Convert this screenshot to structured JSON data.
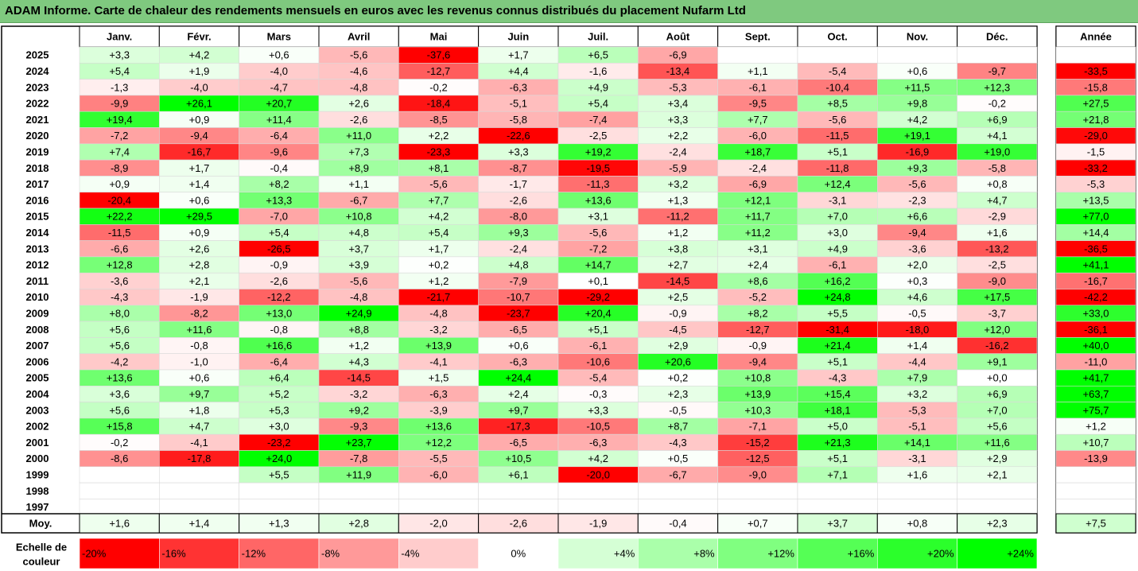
{
  "title": "ADAM Informe. Carte de chaleur des rendements mensuels en euros avec les revenus connus distribués du placement Nufarm Ltd",
  "chart_data": {
    "type": "heatmap",
    "months": [
      "Janv.",
      "Févr.",
      "Mars",
      "Avril",
      "Mai",
      "Juin",
      "Juil.",
      "Août",
      "Sept.",
      "Oct.",
      "Nov.",
      "Déc."
    ],
    "year_header": "Année",
    "rows": [
      {
        "year": "2025",
        "values": [
          3.3,
          4.2,
          0.6,
          -5.6,
          -37.6,
          1.7,
          6.5,
          -6.9,
          null,
          null,
          null,
          null
        ],
        "annual": null
      },
      {
        "year": "2024",
        "values": [
          5.4,
          1.9,
          -4.0,
          -4.6,
          -12.7,
          4.4,
          -1.6,
          -13.4,
          1.1,
          -5.4,
          0.6,
          -9.7
        ],
        "annual": -33.5
      },
      {
        "year": "2023",
        "values": [
          -1.3,
          -4.0,
          -4.7,
          -4.8,
          -0.2,
          -6.3,
          4.9,
          -5.3,
          -6.1,
          -10.4,
          11.5,
          12.3
        ],
        "annual": -15.8
      },
      {
        "year": "2022",
        "values": [
          -9.9,
          26.1,
          20.7,
          2.6,
          -18.4,
          -5.1,
          5.4,
          3.4,
          -9.5,
          8.5,
          9.8,
          -0.2
        ],
        "annual": 27.5
      },
      {
        "year": "2021",
        "values": [
          19.4,
          0.9,
          11.4,
          -2.6,
          -8.5,
          -5.8,
          -7.4,
          3.3,
          7.7,
          -5.6,
          4.2,
          6.9
        ],
        "annual": 21.8
      },
      {
        "year": "2020",
        "values": [
          -7.2,
          -9.4,
          -6.4,
          11.0,
          2.2,
          -22.6,
          -2.5,
          2.2,
          -6.0,
          -11.5,
          19.1,
          4.1
        ],
        "annual": -29.0
      },
      {
        "year": "2019",
        "values": [
          7.4,
          -16.7,
          -9.6,
          7.3,
          -23.3,
          3.3,
          19.2,
          -2.4,
          18.7,
          5.1,
          -16.9,
          19.0
        ],
        "annual": -1.5
      },
      {
        "year": "2018",
        "values": [
          -8.9,
          1.7,
          -0.4,
          8.9,
          8.1,
          -8.7,
          -19.5,
          -5.9,
          -2.4,
          -11.8,
          9.3,
          -5.8
        ],
        "annual": -33.2
      },
      {
        "year": "2017",
        "values": [
          0.9,
          1.4,
          8.2,
          1.1,
          -5.6,
          -1.7,
          -11.3,
          3.2,
          -6.9,
          12.4,
          -5.6,
          0.8
        ],
        "annual": -5.3
      },
      {
        "year": "2016",
        "values": [
          -20.4,
          0.6,
          13.3,
          -6.7,
          7.7,
          -2.6,
          13.6,
          1.3,
          12.1,
          -3.1,
          -2.3,
          4.7
        ],
        "annual": 13.5
      },
      {
        "year": "2015",
        "values": [
          22.2,
          29.5,
          -7.0,
          10.8,
          4.2,
          -8.0,
          3.1,
          -11.2,
          11.7,
          7.0,
          6.6,
          -2.9
        ],
        "annual": 77.0
      },
      {
        "year": "2014",
        "values": [
          -11.5,
          0.9,
          5.4,
          4.8,
          5.4,
          9.3,
          -5.6,
          1.2,
          11.2,
          3.0,
          -9.4,
          1.6
        ],
        "annual": 14.4
      },
      {
        "year": "2013",
        "values": [
          -6.6,
          2.6,
          -26.5,
          3.7,
          1.7,
          -2.4,
          -7.2,
          3.8,
          3.1,
          4.9,
          -3.6,
          -13.2
        ],
        "annual": -36.5
      },
      {
        "year": "2012",
        "values": [
          12.8,
          2.8,
          -0.9,
          3.9,
          0.2,
          4.8,
          14.7,
          2.7,
          2.4,
          -6.1,
          2.0,
          -2.5
        ],
        "annual": 41.1
      },
      {
        "year": "2011",
        "values": [
          -3.6,
          2.1,
          -2.6,
          -5.6,
          1.2,
          -7.9,
          0.1,
          -14.5,
          8.6,
          16.2,
          0.3,
          -9.0
        ],
        "annual": -16.7
      },
      {
        "year": "2010",
        "values": [
          -4.3,
          -1.9,
          -12.2,
          -4.8,
          -21.7,
          -10.7,
          -29.2,
          2.5,
          -5.2,
          24.8,
          4.6,
          17.5
        ],
        "annual": -42.2
      },
      {
        "year": "2009",
        "values": [
          8.0,
          -8.2,
          13.0,
          24.9,
          -4.8,
          -23.7,
          20.4,
          -0.9,
          8.2,
          5.5,
          -0.5,
          -3.7
        ],
        "annual": 33.0
      },
      {
        "year": "2008",
        "values": [
          5.6,
          11.6,
          -0.8,
          8.8,
          -3.2,
          -6.5,
          5.1,
          -4.5,
          -12.7,
          -31.4,
          -18.0,
          12.0
        ],
        "annual": -36.1
      },
      {
        "year": "2007",
        "values": [
          5.6,
          -0.8,
          16.6,
          1.2,
          13.9,
          0.6,
          -6.1,
          2.9,
          -0.9,
          21.4,
          1.4,
          -16.2
        ],
        "annual": 40.0
      },
      {
        "year": "2006",
        "values": [
          -4.2,
          -1.0,
          -6.4,
          4.3,
          -4.1,
          -6.3,
          -10.6,
          20.6,
          -9.4,
          5.1,
          -4.4,
          9.1
        ],
        "annual": -11.0
      },
      {
        "year": "2005",
        "values": [
          13.6,
          0.6,
          6.4,
          -14.5,
          1.5,
          24.4,
          -5.4,
          0.2,
          10.8,
          -4.3,
          7.9,
          0.0
        ],
        "annual": 41.7
      },
      {
        "year": "2004",
        "values": [
          3.6,
          9.7,
          5.2,
          -3.2,
          -6.3,
          2.4,
          -0.3,
          2.3,
          13.9,
          15.4,
          3.2,
          6.9
        ],
        "annual": 63.7
      },
      {
        "year": "2003",
        "values": [
          5.6,
          1.8,
          5.3,
          9.2,
          -3.9,
          9.7,
          3.3,
          -0.5,
          10.3,
          18.1,
          -5.3,
          7.0
        ],
        "annual": 75.7
      },
      {
        "year": "2002",
        "values": [
          15.8,
          4.7,
          3.0,
          -9.3,
          13.6,
          -17.3,
          -10.5,
          8.7,
          -7.1,
          5.0,
          -5.1,
          5.6
        ],
        "annual": 1.2
      },
      {
        "year": "2001",
        "values": [
          -0.2,
          -4.1,
          -23.2,
          23.7,
          12.2,
          -6.5,
          -6.3,
          -4.3,
          -15.2,
          21.3,
          14.1,
          11.6
        ],
        "annual": 10.7
      },
      {
        "year": "2000",
        "values": [
          -8.6,
          -17.8,
          24.0,
          -7.8,
          -5.5,
          10.5,
          4.2,
          0.5,
          -12.5,
          5.1,
          -3.1,
          2.9
        ],
        "annual": -13.9
      },
      {
        "year": "1999",
        "values": [
          null,
          null,
          5.5,
          11.9,
          -6.0,
          6.1,
          -20.0,
          -6.7,
          -9.0,
          7.1,
          1.6,
          2.1
        ],
        "annual": null
      },
      {
        "year": "1998",
        "values": [
          null,
          null,
          null,
          null,
          null,
          null,
          null,
          null,
          null,
          null,
          null,
          null
        ],
        "annual": null
      },
      {
        "year": "1997",
        "values": [
          null,
          null,
          null,
          null,
          null,
          null,
          null,
          null,
          null,
          null,
          null,
          null
        ],
        "annual": null
      }
    ],
    "average": {
      "label": "Moy.",
      "values": [
        1.6,
        1.4,
        1.3,
        2.8,
        -2.0,
        -2.6,
        -1.9,
        -0.4,
        0.7,
        3.7,
        0.8,
        2.3
      ],
      "annual": 7.5
    },
    "color_scale": {
      "label": "Echelle de couleur",
      "stops": [
        -20,
        -16,
        -12,
        -8,
        -4,
        0,
        4,
        8,
        12,
        16,
        20,
        24
      ],
      "stop_labels": [
        "-20%",
        "-16%",
        "-12%",
        "-8%",
        "-4%",
        "0%",
        "+4%",
        "+8%",
        "+12%",
        "+16%",
        "+20%",
        "+24%"
      ],
      "negative_color": "#ff0000",
      "neutral_color": "#ffffff",
      "positive_color": "#00ff00"
    }
  }
}
